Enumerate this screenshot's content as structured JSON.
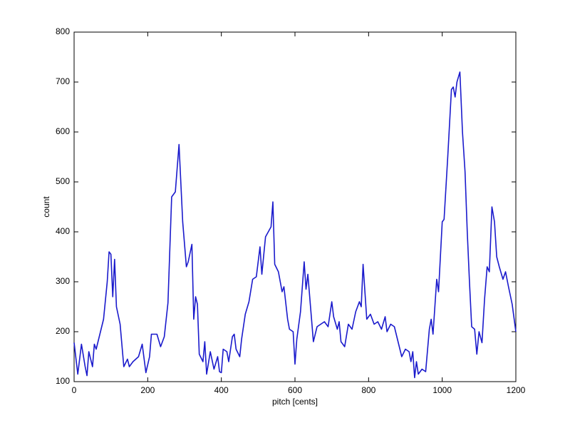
{
  "chart_data": {
    "type": "line",
    "xlabel": "pitch [cents]",
    "ylabel": "count",
    "xlim": [
      0,
      1200
    ],
    "ylim": [
      100,
      800
    ],
    "xticks": [
      0,
      200,
      400,
      600,
      800,
      1000,
      1200
    ],
    "yticks": [
      100,
      200,
      300,
      400,
      500,
      600,
      700,
      800
    ],
    "grid": false,
    "series": [
      {
        "color": "#1a1acc",
        "x": [
          0,
          10,
          20,
          30,
          35,
          40,
          50,
          55,
          60,
          70,
          80,
          90,
          95,
          100,
          105,
          110,
          115,
          125,
          135,
          145,
          150,
          160,
          175,
          185,
          195,
          205,
          210,
          225,
          235,
          245,
          255,
          265,
          275,
          285,
          295,
          305,
          310,
          320,
          325,
          330,
          335,
          340,
          350,
          355,
          360,
          370,
          380,
          390,
          395,
          400,
          405,
          415,
          420,
          430,
          435,
          440,
          450,
          455,
          465,
          475,
          485,
          495,
          505,
          510,
          520,
          535,
          540,
          545,
          555,
          565,
          570,
          580,
          585,
          595,
          600,
          605,
          615,
          625,
          630,
          635,
          645,
          650,
          660,
          670,
          680,
          690,
          700,
          705,
          715,
          720,
          725,
          735,
          745,
          755,
          765,
          775,
          780,
          785,
          795,
          805,
          815,
          825,
          835,
          845,
          850,
          860,
          870,
          880,
          890,
          900,
          910,
          915,
          920,
          925,
          930,
          935,
          945,
          955,
          965,
          970,
          975,
          985,
          990,
          1000,
          1005,
          1015,
          1025,
          1030,
          1035,
          1040,
          1048,
          1055,
          1062,
          1068,
          1074,
          1080,
          1088,
          1094,
          1100,
          1108,
          1115,
          1122,
          1128,
          1135,
          1142,
          1148,
          1155,
          1165,
          1172,
          1180,
          1190,
          1200
        ],
        "values": [
          178,
          115,
          175,
          130,
          112,
          160,
          130,
          175,
          165,
          195,
          225,
          300,
          360,
          355,
          270,
          345,
          250,
          215,
          130,
          145,
          130,
          140,
          150,
          175,
          118,
          150,
          195,
          195,
          170,
          190,
          258,
          470,
          480,
          575,
          420,
          330,
          340,
          375,
          225,
          270,
          255,
          155,
          140,
          180,
          115,
          160,
          125,
          150,
          120,
          118,
          165,
          160,
          140,
          190,
          195,
          165,
          150,
          185,
          235,
          260,
          305,
          310,
          370,
          315,
          390,
          410,
          460,
          335,
          320,
          280,
          290,
          225,
          205,
          200,
          135,
          185,
          240,
          340,
          285,
          315,
          225,
          180,
          210,
          215,
          220,
          210,
          260,
          230,
          205,
          220,
          180,
          170,
          215,
          205,
          240,
          260,
          250,
          335,
          225,
          235,
          215,
          220,
          205,
          230,
          200,
          215,
          210,
          180,
          150,
          165,
          160,
          140,
          160,
          108,
          140,
          115,
          125,
          120,
          205,
          225,
          195,
          305,
          280,
          420,
          425,
          550,
          685,
          690,
          670,
          700,
          720,
          600,
          520,
          400,
          300,
          210,
          205,
          155,
          200,
          178,
          265,
          330,
          320,
          450,
          420,
          350,
          330,
          305,
          320,
          290,
          255,
          200
        ]
      }
    ]
  }
}
